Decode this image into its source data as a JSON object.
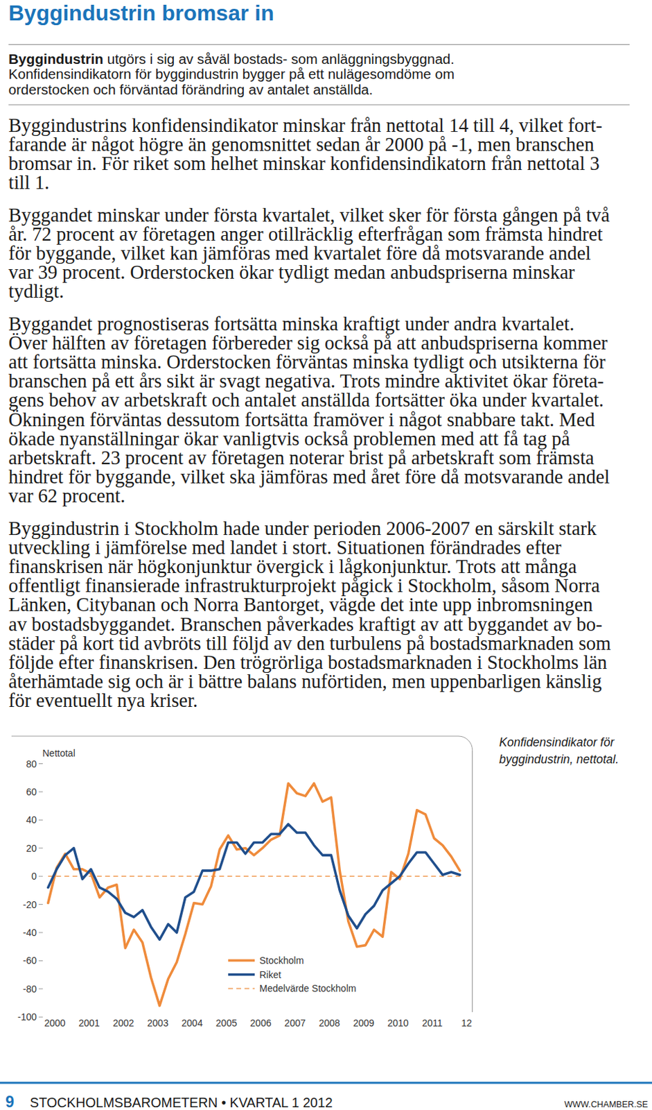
{
  "title": "Byggindustrin bromsar in",
  "intro": {
    "lead": "Byggindustrin",
    "lines": [
      " utgörs i sig av såväl bostads- som anläggningsbyggnad.",
      "Konfidensindikatorn för byggindustrin bygger på ett nulägesomdöme om",
      "orderstocken och förväntad förändring av antalet anställda."
    ]
  },
  "paragraphs": [
    {
      "lines": [
        "Byggindustrins konfidensindikator minskar från nettotal 14 till 4, vilket fort-",
        "farande är något högre än genomsnittet sedan år 2000 på -1, men branschen",
        "bromsar in. För riket som helhet minskar konfidensindikatorn från nettotal 3",
        "till 1."
      ]
    },
    {
      "lines": [
        "Byggandet minskar under första kvartalet, vilket sker för första gången på två",
        "år. 72 procent av företagen anger otillräcklig efterfrågan som främsta hindret",
        "för byggande, vilket kan jämföras med kvartalet före då motsvarande andel",
        "var 39 procent. Orderstocken ökar tydligt medan anbudspriserna minskar",
        "tydligt."
      ]
    },
    {
      "lines": [
        "Byggandet prognostiseras fortsätta minska kraftigt under andra kvartalet.",
        "Över hälften av företagen förbereder sig också på att anbudspriserna kommer",
        "att fortsätta minska. Orderstocken förväntas minska tydligt och utsikterna för",
        "branschen på ett års sikt är svagt negativa. Trots mindre aktivitet ökar företa-",
        "gens behov av arbetskraft och antalet anställda fortsätter öka under kvartalet.",
        "Ökningen förväntas dessutom fortsätta framöver i något snabbare takt. Med",
        "ökade nyanställningar ökar vanligtvis också problemen med att få tag på",
        "arbetskraft. 23 procent av företagen noterar brist på arbetskraft som främsta",
        "hindret för byggande, vilket ska jämföras med året före då motsvarande andel",
        "var 62 procent."
      ]
    },
    {
      "lines": [
        "Byggindustrin i Stockholm hade under perioden 2006-2007 en särskilt stark",
        "utveckling i jämförelse med landet i stort. Situationen förändrades efter",
        "finanskrisen när högkonjunktur övergick i lågkonjunktur. Trots att många",
        "offentligt finansierade infrastrukturprojekt pågick i Stockholm, såsom Norra",
        "Länken, Citybanan och Norra Bantorget, vägde det inte upp inbromsningen",
        "av bostadsbyggandet. Branschen påverkades kraftigt av att byggandet av bo-",
        "städer på kort tid avbröts till följd av den turbulens på bostadsmarknaden som",
        "följde efter finanskrisen. Den trögrörliga bostadsmarknaden i Stockholms län",
        "återhämtade sig och är i bättre balans nuförtiden, men uppenbarligen känslig",
        "för eventuellt nya kriser."
      ]
    }
  ],
  "chart_data": {
    "type": "line",
    "title": "Konfidensindikator för byggindustrin, nettotal.",
    "y_label": "Nettotal",
    "categories": [
      "2000",
      null,
      null,
      null,
      "2001",
      null,
      null,
      null,
      "2002",
      null,
      null,
      null,
      "2003",
      null,
      null,
      null,
      "2004",
      null,
      null,
      null,
      "2005",
      null,
      null,
      null,
      "2006",
      null,
      null,
      null,
      "2007",
      null,
      null,
      null,
      "2008",
      null,
      null,
      null,
      "2009",
      null,
      null,
      null,
      "2010",
      null,
      null,
      null,
      "2011",
      null,
      null,
      null,
      "12"
    ],
    "ylim": [
      -100,
      80
    ],
    "yticks": [
      -100,
      -80,
      -60,
      -40,
      -20,
      0,
      20,
      40,
      60,
      80
    ],
    "legend": "bottom",
    "series": [
      {
        "name": "Stockholm",
        "color": "#ef8b3b",
        "line_style": "solid",
        "values": [
          -19,
          6,
          16,
          5,
          5,
          2,
          -15,
          -8,
          -6,
          -51,
          -38,
          -47,
          -72,
          -92,
          -73,
          -61,
          -41,
          -19,
          -20,
          -7,
          19,
          29,
          19,
          20,
          15,
          20,
          26,
          29,
          66,
          59,
          57,
          66,
          53,
          56,
          4,
          -32,
          -50,
          -49,
          -38,
          -43,
          3,
          -2,
          16,
          47,
          44,
          27,
          22,
          14,
          4
        ]
      },
      {
        "name": "Riket",
        "color": "#1f4e8c",
        "line_style": "solid",
        "values": [
          -8,
          5,
          15,
          20,
          -2,
          5,
          -8,
          -11,
          -16,
          -26,
          -29,
          -24,
          -36,
          -45,
          -34,
          -40,
          -15,
          -11,
          4,
          4,
          5,
          24,
          24,
          16,
          24,
          24,
          30,
          30,
          37,
          31,
          31,
          22,
          15,
          15,
          -10,
          -28,
          -37,
          -27,
          -21,
          -10,
          -5,
          0,
          9,
          17,
          17,
          9,
          1,
          3,
          1
        ]
      },
      {
        "name": "Medelvärde Stockholm",
        "color": "#f2a86a",
        "line_style": "dashed",
        "values": [
          0,
          0,
          0,
          0,
          0,
          0,
          0,
          0,
          0,
          0,
          0,
          0,
          0,
          0,
          0,
          0,
          0,
          0,
          0,
          0,
          0,
          0,
          0,
          0,
          0,
          0,
          0,
          0,
          0,
          0,
          0,
          0,
          0,
          0,
          0,
          0,
          0,
          0,
          0,
          0,
          0,
          0,
          0,
          0,
          0,
          0,
          0,
          0,
          0
        ]
      }
    ]
  },
  "footer": {
    "page": "9",
    "publication": "STOCKHOLMSBAROMETERN",
    "separator": "•",
    "period": "KVARTAL 1 2012",
    "url": "WWW.CHAMBER.SE"
  }
}
